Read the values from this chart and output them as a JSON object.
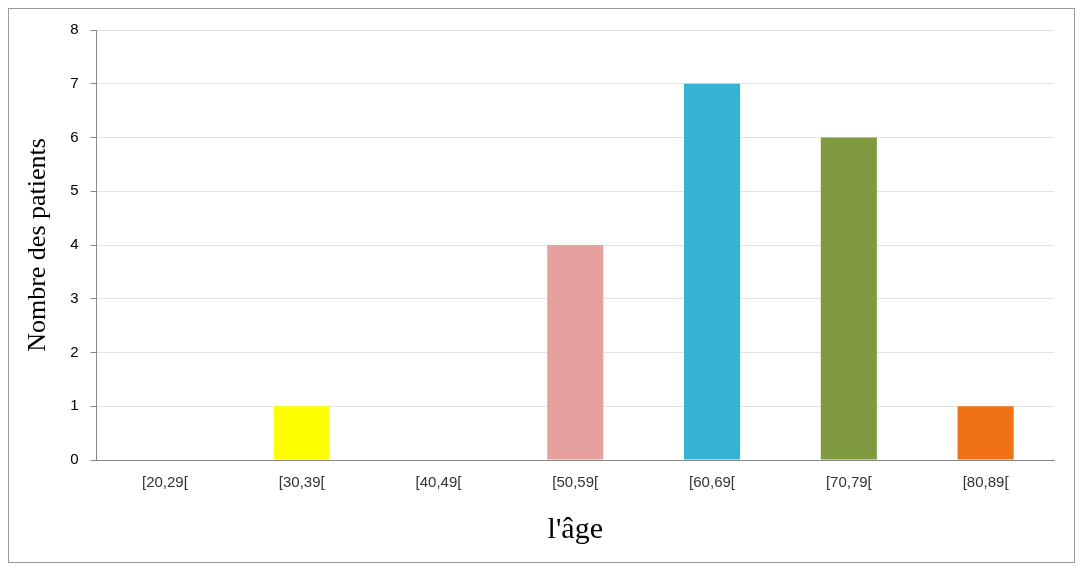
{
  "chart_data": {
    "type": "bar",
    "xlabel": "l'âge",
    "ylabel": "Nombre des patients",
    "categories": [
      "[20,29[",
      "[30,39[",
      "[40,49[",
      "[50,59[",
      "[60,69[",
      "[70,79[",
      "[80,89["
    ],
    "values": [
      0,
      1,
      0,
      4,
      7,
      6,
      1
    ],
    "colors": [
      "#c0c0c0",
      "#ffff00",
      "#c0c0c0",
      "#e6a09e",
      "#35b3d4",
      "#7f9a3f",
      "#f07214"
    ],
    "ylim": [
      0,
      8
    ],
    "yticks": [
      0,
      1,
      2,
      3,
      4,
      5,
      6,
      7,
      8
    ],
    "grid": "y",
    "legend": false
  }
}
